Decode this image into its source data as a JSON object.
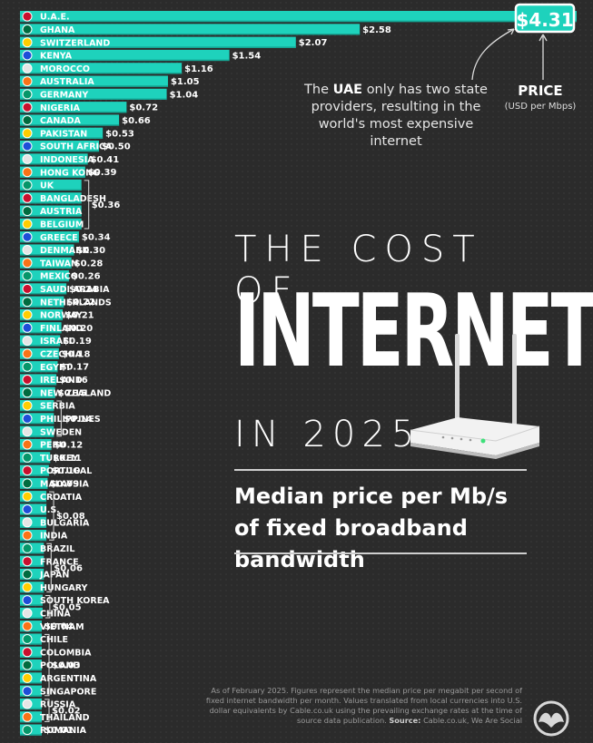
{
  "title": {
    "line1": "THE COST OF",
    "line2": "INTERNET",
    "line3": "IN 2025",
    "subtitle": "Median price per Mb/s of fixed broadband bandwidth"
  },
  "annotation": {
    "pre": "The",
    "bold": "UAE",
    "post": "only has two state providers, resulting in the world's most expensive internet"
  },
  "price_label": "PRICE",
  "price_unit": "(USD per Mbps)",
  "footer": {
    "text": "As of February 2025. Figures represent the median price per megabit per second of fixed internet bandwidth per month. Values translated from local currencies into U.S. dollar equivalents by Cable.co.uk using the prevailing exchange rates at the time of source data publication.",
    "source_label": "Source:",
    "source": "Cable.co.uk, We Are Social"
  },
  "colors": {
    "bar": "#1ed2bc",
    "bar_dark": "#18b9a5",
    "background": "#2b2b2b",
    "text": "#ffffff"
  },
  "chart_data": {
    "type": "bar",
    "orientation": "horizontal",
    "categories": [
      "U.A.E.",
      "GHANA",
      "SWITZERLAND",
      "KENYA",
      "MOROCCO",
      "AUSTRALIA",
      "GERMANY",
      "NIGERIA",
      "CANADA",
      "PAKISTAN",
      "SOUTH AFRICA",
      "INDONESIA",
      "HONG KONG",
      "UK",
      "BANGLADESH",
      "AUSTRIA",
      "BELGIUM",
      "GREECE",
      "DENMARK",
      "TAIWAN",
      "MEXICO",
      "SAUDI ARABIA",
      "NETHERLANDS",
      "NORWAY",
      "FINLAND",
      "ISRAEL",
      "CZECHIA",
      "EGYPT",
      "IRELAND",
      "NEW ZEALAND",
      "SERBIA",
      "PHILIPPINES",
      "SWEDEN",
      "PERU",
      "TURKEY",
      "PORTUGAL",
      "MALAYSIA",
      "CROATIA",
      "U.S.",
      "BULGARIA",
      "INDIA",
      "BRAZIL",
      "FRANCE",
      "JAPAN",
      "HUNGARY",
      "SOUTH KOREA",
      "CHINA",
      "VIETNAM",
      "CHILE",
      "COLOMBIA",
      "POLAND",
      "ARGENTINA",
      "SINGAPORE",
      "RUSSIA",
      "THAILAND",
      "ROMANIA"
    ],
    "values": [
      4.31,
      2.58,
      2.07,
      1.54,
      1.16,
      1.05,
      1.04,
      0.72,
      0.66,
      0.53,
      0.5,
      0.41,
      0.39,
      0.36,
      0.36,
      0.36,
      0.36,
      0.34,
      0.3,
      0.28,
      0.26,
      0.24,
      0.22,
      0.21,
      0.2,
      0.19,
      0.18,
      0.17,
      0.16,
      0.15,
      0.14,
      0.14,
      0.14,
      0.12,
      0.11,
      0.1,
      0.09,
      0.08,
      0.08,
      0.08,
      0.08,
      0.06,
      0.06,
      0.06,
      0.06,
      0.05,
      0.05,
      0.04,
      0.03,
      0.03,
      0.03,
      0.03,
      0.03,
      0.02,
      0.02,
      0.01
    ],
    "value_labels": [
      {
        "from": 0,
        "to": 0,
        "label": "$4.31"
      },
      {
        "from": 1,
        "to": 1,
        "label": "$2.58"
      },
      {
        "from": 2,
        "to": 2,
        "label": "$2.07"
      },
      {
        "from": 3,
        "to": 3,
        "label": "$1.54"
      },
      {
        "from": 4,
        "to": 4,
        "label": "$1.16"
      },
      {
        "from": 5,
        "to": 5,
        "label": "$1.05"
      },
      {
        "from": 6,
        "to": 6,
        "label": "$1.04"
      },
      {
        "from": 7,
        "to": 7,
        "label": "$0.72"
      },
      {
        "from": 8,
        "to": 8,
        "label": "$0.66"
      },
      {
        "from": 9,
        "to": 9,
        "label": "$0.53"
      },
      {
        "from": 10,
        "to": 10,
        "label": "$0.50"
      },
      {
        "from": 11,
        "to": 11,
        "label": "$0.41"
      },
      {
        "from": 12,
        "to": 12,
        "label": "$0.39"
      },
      {
        "from": 13,
        "to": 16,
        "label": "$0.36"
      },
      {
        "from": 17,
        "to": 17,
        "label": "$0.34"
      },
      {
        "from": 18,
        "to": 18,
        "label": "$0.30"
      },
      {
        "from": 19,
        "to": 19,
        "label": "$0.28"
      },
      {
        "from": 20,
        "to": 20,
        "label": "$0.26"
      },
      {
        "from": 21,
        "to": 21,
        "label": "$0.24"
      },
      {
        "from": 22,
        "to": 22,
        "label": "$0.22"
      },
      {
        "from": 23,
        "to": 23,
        "label": "$0.21"
      },
      {
        "from": 24,
        "to": 24,
        "label": "$0.20"
      },
      {
        "from": 25,
        "to": 25,
        "label": "$0.19"
      },
      {
        "from": 26,
        "to": 26,
        "label": "$0.18"
      },
      {
        "from": 27,
        "to": 27,
        "label": "$0.17"
      },
      {
        "from": 28,
        "to": 28,
        "label": "$0.16"
      },
      {
        "from": 29,
        "to": 29,
        "label": "$0.15"
      },
      {
        "from": 30,
        "to": 32,
        "label": "$0.14"
      },
      {
        "from": 33,
        "to": 33,
        "label": "$0.12"
      },
      {
        "from": 34,
        "to": 34,
        "label": "$0.11"
      },
      {
        "from": 35,
        "to": 35,
        "label": "$0.10"
      },
      {
        "from": 36,
        "to": 36,
        "label": "$0.09"
      },
      {
        "from": 37,
        "to": 40,
        "label": "$0.08"
      },
      {
        "from": 41,
        "to": 44,
        "label": "$0.06"
      },
      {
        "from": 45,
        "to": 46,
        "label": "$0.05"
      },
      {
        "from": 47,
        "to": 47,
        "label": "$0.04"
      },
      {
        "from": 48,
        "to": 52,
        "label": "$0.03"
      },
      {
        "from": 53,
        "to": 54,
        "label": "$0.02"
      },
      {
        "from": 55,
        "to": 55,
        "label": "$0.01"
      }
    ],
    "title": "THE COST OF INTERNET IN 2025",
    "subtitle": "Median price per Mb/s of fixed broadband bandwidth",
    "xlabel": "PRICE (USD per Mbps)",
    "ylabel": "",
    "xlim": [
      0,
      4.31
    ],
    "grid": false,
    "legend": "none"
  }
}
